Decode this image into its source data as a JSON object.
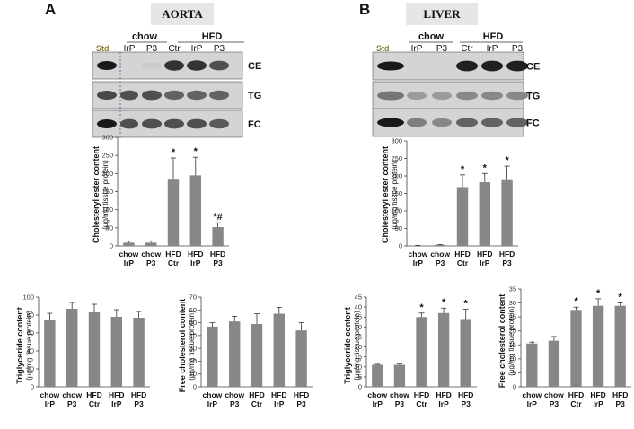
{
  "panels": [
    {
      "letter": "A",
      "title": "AORTA",
      "blot": {
        "std_label": "Std",
        "groups": [
          {
            "label": "chow",
            "lanes": [
              "IrP",
              "P3"
            ]
          },
          {
            "label": "HFD",
            "lanes": [
              "Ctr",
              "IrP",
              "P3"
            ]
          }
        ],
        "rows": [
          {
            "label": "CE",
            "intensity": [
              0.0,
              0.05,
              0.85,
              0.85,
              0.7
            ],
            "std": 1.0
          },
          {
            "label": "TG",
            "intensity": [
              0.7,
              0.7,
              0.6,
              0.6,
              0.6
            ],
            "std": 0.8
          },
          {
            "label": "FC",
            "intensity": [
              0.7,
              0.7,
              0.7,
              0.7,
              0.65
            ],
            "std": 1.0
          }
        ]
      }
    },
    {
      "letter": "B",
      "title": "LIVER",
      "blot": {
        "std_label": "Std",
        "groups": [
          {
            "label": "chow",
            "lanes": [
              "IrP",
              "P3"
            ]
          },
          {
            "label": "HFD",
            "lanes": [
              "Ctr",
              "IrP",
              "P3"
            ]
          }
        ],
        "rows": [
          {
            "label": "CE",
            "intensity": [
              0.0,
              0.0,
              0.95,
              0.95,
              0.95
            ],
            "std": 1.0
          },
          {
            "label": "TG",
            "intensity": [
              0.3,
              0.3,
              0.4,
              0.4,
              0.4
            ],
            "std": 0.6
          },
          {
            "label": "FC",
            "intensity": [
              0.45,
              0.4,
              0.6,
              0.6,
              0.6
            ],
            "std": 1.0
          }
        ]
      }
    }
  ],
  "chart_data": [
    {
      "type": "bar",
      "panel": "A",
      "categories": [
        "chow IrP",
        "chow P3",
        "HFD Ctr",
        "HFD IrP",
        "HFD P3"
      ],
      "category_lines": [
        [
          "chow",
          "IrP"
        ],
        [
          "chow",
          "P3"
        ],
        [
          "HFD",
          "Ctr"
        ],
        [
          "HFD",
          "IrP"
        ],
        [
          "HFD",
          "P3"
        ]
      ],
      "values": [
        9,
        9,
        183,
        195,
        52
      ],
      "errors": [
        4,
        5,
        60,
        50,
        12
      ],
      "annotations": [
        "",
        "",
        "*",
        "*",
        "*#"
      ],
      "ylabel": "Cholesteryl ester content",
      "yunit": "(µg/mg tissue protein)",
      "ylim": [
        0,
        300
      ],
      "yticks": [
        "0",
        "50",
        "100",
        "150",
        "200",
        "250",
        "300"
      ],
      "bar_color": "#878787"
    },
    {
      "type": "bar",
      "panel": "B",
      "categories": [
        "chow IrP",
        "chow P3",
        "HFD Ctr",
        "HFD IrP",
        "HFD P3"
      ],
      "category_lines": [
        [
          "chow",
          "IrP"
        ],
        [
          "chow",
          "P3"
        ],
        [
          "HFD",
          "Ctr"
        ],
        [
          "HFD",
          "IrP"
        ],
        [
          "HFD",
          "P3"
        ]
      ],
      "values": [
        1,
        3,
        168,
        182,
        188
      ],
      "errors": [
        0.5,
        1,
        35,
        25,
        40
      ],
      "annotations": [
        "",
        "",
        "*",
        "*",
        "*"
      ],
      "ylabel": "Cholesteryl ester content",
      "yunit": "(µg/mg tissue protein)",
      "ylim": [
        0,
        300
      ],
      "yticks": [
        "0",
        "50",
        "100",
        "150",
        "200",
        "250",
        "300"
      ],
      "bar_color": "#878787"
    },
    {
      "type": "bar",
      "panel": "A",
      "categories": [
        "chow IrP",
        "chow P3",
        "HFD Ctr",
        "HFD IrP",
        "HFD P3"
      ],
      "category_lines": [
        [
          "chow",
          "IrP"
        ],
        [
          "chow",
          "P3"
        ],
        [
          "HFD",
          "Ctr"
        ],
        [
          "HFD",
          "IrP"
        ],
        [
          "HFD",
          "P3"
        ]
      ],
      "values": [
        75,
        87,
        83,
        78,
        77
      ],
      "errors": [
        7,
        7,
        9,
        8,
        7
      ],
      "annotations": [
        "",
        "",
        "",
        "",
        ""
      ],
      "ylabel": "Triglyceride content",
      "yunit": "(µg/mg tissue protein)",
      "ylim": [
        0,
        100
      ],
      "yticks": [
        "0",
        "20",
        "40",
        "60",
        "80",
        "100"
      ],
      "bar_color": "#878787"
    },
    {
      "type": "bar",
      "panel": "A",
      "categories": [
        "chow IrP",
        "chow P3",
        "HFD Ctr",
        "HFD IrP",
        "HFD P3"
      ],
      "category_lines": [
        [
          "chow",
          "IrP"
        ],
        [
          "chow",
          "P3"
        ],
        [
          "HFD",
          "Ctr"
        ],
        [
          "HFD",
          "IrP"
        ],
        [
          "HFD",
          "P3"
        ]
      ],
      "values": [
        47,
        51,
        49,
        57,
        44
      ],
      "errors": [
        3,
        4,
        8,
        5,
        6
      ],
      "annotations": [
        "",
        "",
        "",
        "",
        ""
      ],
      "ylabel": "Free cholesterol content",
      "yunit": "(µg/mg tissue protein)",
      "ylim": [
        0,
        70
      ],
      "yticks": [
        "0",
        "10",
        "20",
        "30",
        "40",
        "50",
        "60",
        "70"
      ],
      "bar_color": "#878787"
    },
    {
      "type": "bar",
      "panel": "B",
      "categories": [
        "chow IrP",
        "chow P3",
        "HFD Ctr",
        "HFD IrP",
        "HFD P3"
      ],
      "category_lines": [
        [
          "chow",
          "IrP"
        ],
        [
          "chow",
          "P3"
        ],
        [
          "HFD",
          "Ctr"
        ],
        [
          "HFD",
          "IrP"
        ],
        [
          "HFD",
          "P3"
        ]
      ],
      "values": [
        11,
        11,
        35,
        37,
        34
      ],
      "errors": [
        0.3,
        0.4,
        2,
        2.5,
        5
      ],
      "annotations": [
        "",
        "",
        "*",
        "*",
        "*"
      ],
      "ylabel": "Triglyceride content",
      "yunit": "(µg/mg tissue protein)",
      "ylim": [
        0,
        45
      ],
      "yticks": [
        "0",
        "5",
        "10",
        "15",
        "20",
        "25",
        "30",
        "35",
        "40",
        "45"
      ],
      "bar_color": "#878787"
    },
    {
      "type": "bar",
      "panel": "B",
      "categories": [
        "chow IrP",
        "chow P3",
        "HFD Ctr",
        "HFD IrP",
        "HFD P3"
      ],
      "category_lines": [
        [
          "chow",
          "IrP"
        ],
        [
          "chow",
          "P3"
        ],
        [
          "HFD",
          "Ctr"
        ],
        [
          "HFD",
          "IrP"
        ],
        [
          "HFD",
          "P3"
        ]
      ],
      "values": [
        15.5,
        16.5,
        27.5,
        29,
        29
      ],
      "errors": [
        0.5,
        1.5,
        1,
        2.5,
        1
      ],
      "annotations": [
        "",
        "",
        "*",
        "*",
        "*"
      ],
      "ylabel": "Free cholesterol content",
      "yunit": "(µg/mg tissue protein)",
      "ylim": [
        0,
        35
      ],
      "yticks": [
        "0",
        "5",
        "10",
        "15",
        "20",
        "25",
        "30",
        "35"
      ],
      "bar_color": "#878787"
    }
  ]
}
